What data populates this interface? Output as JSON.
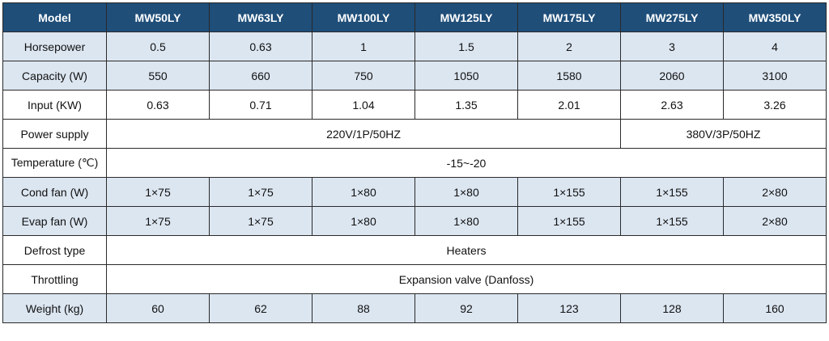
{
  "header": {
    "label": "Model",
    "models": [
      "MW50LY",
      "MW63LY",
      "MW100LY",
      "MW125LY",
      "MW175LY",
      "MW275LY",
      "MW350LY"
    ]
  },
  "rows": {
    "horsepower": {
      "label": "Horsepower",
      "values": [
        "0.5",
        "0.63",
        "1",
        "1.5",
        "2",
        "3",
        "4"
      ]
    },
    "capacity": {
      "label": "Capacity (W)",
      "values": [
        "550",
        "660",
        "750",
        "1050",
        "1580",
        "2060",
        "3100"
      ]
    },
    "input": {
      "label": "Input (KW)",
      "values": [
        "0.63",
        "0.71",
        "1.04",
        "1.35",
        "2.01",
        "2.63",
        "3.26"
      ]
    },
    "power_supply": {
      "label": "Power supply",
      "single_phase": "220V/1P/50HZ",
      "three_phase": "380V/3P/50HZ"
    },
    "temperature": {
      "label": "Temperature (℃)",
      "value": "-15~-20"
    },
    "cond_fan": {
      "label": "Cond fan  (W)",
      "values": [
        "1×75",
        "1×75",
        "1×80",
        "1×80",
        "1×155",
        "1×155",
        "2×80"
      ]
    },
    "evap_fan": {
      "label": "Evap fan  (W)",
      "values": [
        "1×75",
        "1×75",
        "1×80",
        "1×80",
        "1×155",
        "1×155",
        "2×80"
      ]
    },
    "defrost": {
      "label": "Defrost type",
      "value": "Heaters"
    },
    "throttling": {
      "label": "Throttling",
      "value": "Expansion valve (Danfoss)"
    },
    "weight": {
      "label": "Weight (kg)",
      "values": [
        "60",
        "62",
        "88",
        "92",
        "123",
        "128",
        "160"
      ]
    }
  },
  "colors": {
    "header_bg": "#1f4e79",
    "header_text": "#ffffff",
    "row_blue": "#dce6f1",
    "row_white": "#ffffff",
    "border": "#2a2a2a"
  }
}
